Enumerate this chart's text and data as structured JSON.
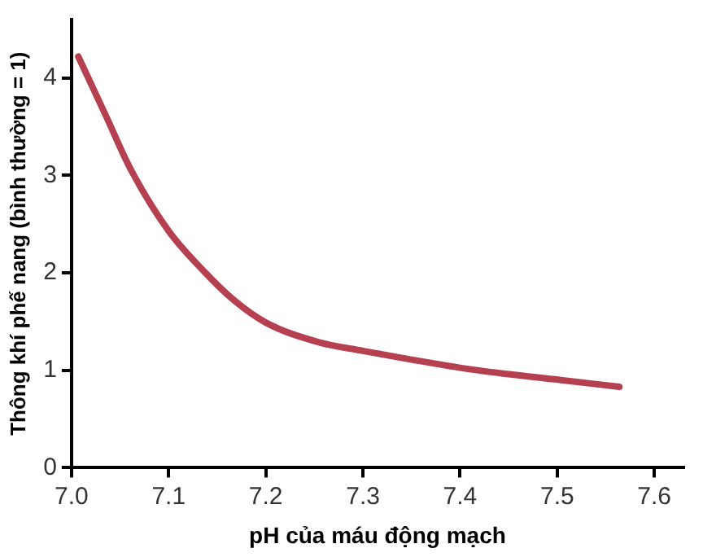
{
  "chart_data": {
    "type": "line",
    "xlabel": "pH của máu động mạch",
    "ylabel": "Thông khí phế nang (bình thường = 1)",
    "xlim": [
      7.0,
      7.63
    ],
    "xticks": [
      {
        "value": 7.0,
        "label": "7.0"
      },
      {
        "value": 7.1,
        "label": "7.1"
      },
      {
        "value": 7.2,
        "label": "7.2"
      },
      {
        "value": 7.3,
        "label": "7.3"
      },
      {
        "value": 7.4,
        "label": "7.4"
      },
      {
        "value": 7.5,
        "label": "7.5"
      },
      {
        "value": 7.6,
        "label": "7.6"
      }
    ],
    "ylim": [
      0,
      4.6
    ],
    "yticks": [
      0,
      1,
      2,
      3,
      4
    ],
    "grid": false,
    "marker": "none",
    "line_style": "solid",
    "series": [
      {
        "color": "#b5404f",
        "x": [
          7.007,
          7.036,
          7.06,
          7.1,
          7.136,
          7.166,
          7.2,
          7.254,
          7.3,
          7.35,
          7.404,
          7.45,
          7.504,
          7.564
        ],
        "values": [
          4.22,
          3.6,
          3.08,
          2.43,
          2.02,
          1.73,
          1.49,
          1.29,
          1.2,
          1.11,
          1.02,
          0.96,
          0.9,
          0.83
        ]
      }
    ]
  }
}
